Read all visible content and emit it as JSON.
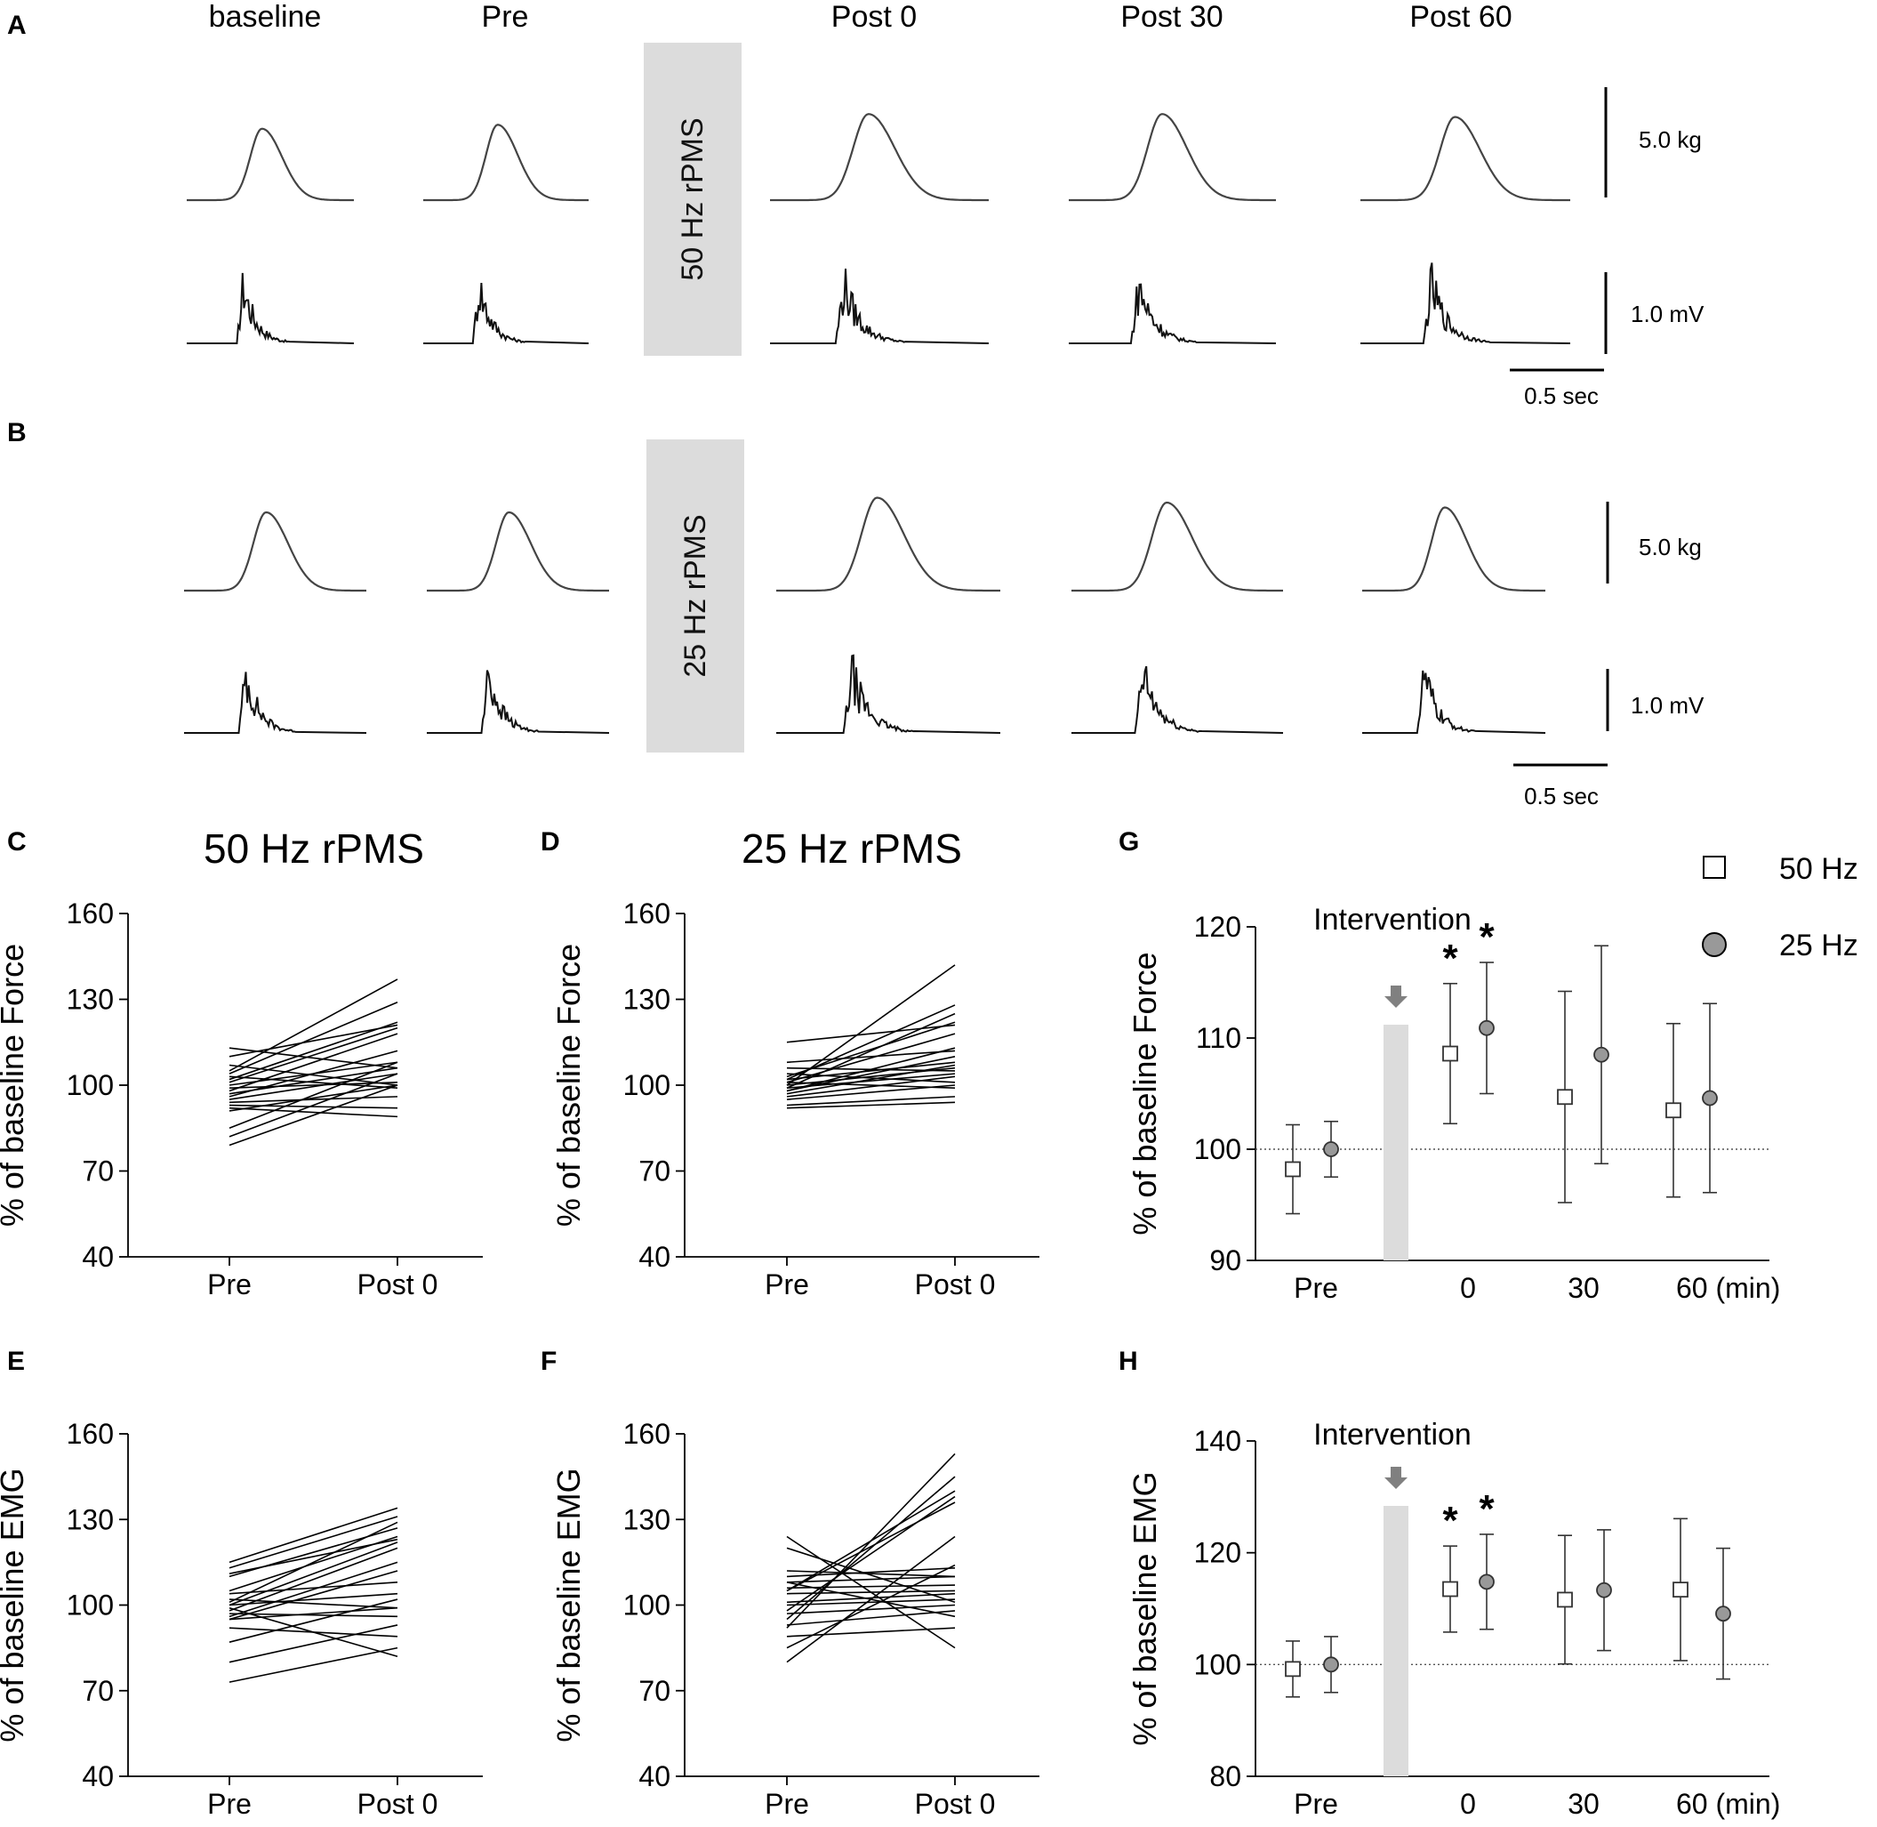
{
  "colors": {
    "trace": "#111111",
    "force_trace": "#444444",
    "band": "#dcdcdc",
    "circle_fill": "#999999",
    "square_fill": "#ffffff"
  },
  "panels_ab": {
    "A": {
      "letter": "A",
      "band_label": "50 Hz rPMS",
      "columns": [
        "baseline",
        "Pre",
        "Post 0",
        "Post 30",
        "Post 60"
      ],
      "force_scale": "5.0 kg",
      "emg_scale": "1.0 mV",
      "time_scale": "0.5 sec",
      "force_peaks": [
        0.73,
        0.77,
        0.88,
        0.88,
        0.85
      ]
    },
    "B": {
      "letter": "B",
      "band_label": "25 Hz rPMS",
      "force_scale": "5.0 kg",
      "emg_scale": "1.0 mV",
      "time_scale": "0.5 sec",
      "force_peaks": [
        0.8,
        0.8,
        0.95,
        0.9,
        0.85
      ]
    }
  },
  "chart_data": [
    {
      "id": "C",
      "letter": "C",
      "type": "line",
      "title": "50 Hz rPMS",
      "ylabel": "% of baseline Force",
      "categories": [
        "Pre",
        "Post 0"
      ],
      "ylim": [
        40,
        160
      ],
      "yticks": [
        "40",
        "70",
        "100",
        "130",
        "160"
      ],
      "pairs": [
        [
          105,
          137
        ],
        [
          104,
          129
        ],
        [
          102,
          122
        ],
        [
          101,
          120
        ],
        [
          98,
          118
        ],
        [
          100,
          108
        ],
        [
          97,
          106
        ],
        [
          95,
          104
        ],
        [
          99,
          101
        ],
        [
          103,
          99
        ],
        [
          96,
          112
        ],
        [
          94,
          96
        ],
        [
          93,
          92
        ],
        [
          92,
          89
        ],
        [
          85,
          108
        ],
        [
          82,
          104
        ],
        [
          79,
          100
        ],
        [
          107,
          100
        ],
        [
          113,
          106
        ],
        [
          110,
          121
        ],
        [
          91,
          100
        ]
      ]
    },
    {
      "id": "D",
      "letter": "D",
      "type": "line",
      "title": "25 Hz rPMS",
      "ylabel": "% of baseline Force",
      "categories": [
        "Pre",
        "Post 0"
      ],
      "ylim": [
        40,
        160
      ],
      "yticks": [
        "40",
        "70",
        "100",
        "130",
        "160"
      ],
      "pairs": [
        [
          100,
          142
        ],
        [
          102,
          128
        ],
        [
          99,
          125
        ],
        [
          103,
          122
        ],
        [
          101,
          118
        ],
        [
          115,
          121
        ],
        [
          108,
          112
        ],
        [
          98,
          110
        ],
        [
          97,
          107
        ],
        [
          100,
          106
        ],
        [
          99,
          104
        ],
        [
          96,
          103
        ],
        [
          95,
          100
        ],
        [
          93,
          96
        ],
        [
          92,
          94
        ],
        [
          101,
          99
        ],
        [
          104,
          101
        ],
        [
          106,
          105
        ],
        [
          98,
          113
        ],
        [
          102,
          108
        ]
      ]
    },
    {
      "id": "E",
      "letter": "E",
      "type": "line",
      "ylabel": "% of baseline EMG",
      "categories": [
        "Pre",
        "Post 0"
      ],
      "ylim": [
        40,
        160
      ],
      "yticks": [
        "40",
        "70",
        "100",
        "130",
        "160"
      ],
      "pairs": [
        [
          115,
          134
        ],
        [
          113,
          131
        ],
        [
          110,
          127
        ],
        [
          105,
          124
        ],
        [
          100,
          122
        ],
        [
          98,
          120
        ],
        [
          96,
          115
        ],
        [
          95,
          112
        ],
        [
          100,
          104
        ],
        [
          102,
          99
        ],
        [
          97,
          96
        ],
        [
          95,
          99
        ],
        [
          92,
          89
        ],
        [
          87,
          102
        ],
        [
          80,
          93
        ],
        [
          73,
          85
        ],
        [
          99,
          82
        ],
        [
          111,
          123
        ],
        [
          101,
          129
        ],
        [
          104,
          108
        ]
      ]
    },
    {
      "id": "F",
      "letter": "F",
      "type": "line",
      "ylabel": "% of baseline EMG",
      "categories": [
        "Pre",
        "Post 0"
      ],
      "ylim": [
        40,
        160
      ],
      "yticks": [
        "40",
        "70",
        "100",
        "130",
        "160"
      ],
      "pairs": [
        [
          92,
          153
        ],
        [
          95,
          145
        ],
        [
          98,
          138
        ],
        [
          105,
          136
        ],
        [
          124,
          85
        ],
        [
          120,
          101
        ],
        [
          110,
          113
        ],
        [
          108,
          110
        ],
        [
          106,
          107
        ],
        [
          104,
          105
        ],
        [
          101,
          104
        ],
        [
          100,
          102
        ],
        [
          97,
          100
        ],
        [
          93,
          98
        ],
        [
          89,
          92
        ],
        [
          85,
          114
        ],
        [
          80,
          124
        ],
        [
          105,
          140
        ],
        [
          108,
          96
        ],
        [
          112,
          110
        ]
      ]
    },
    {
      "id": "G",
      "letter": "G",
      "type": "scatter",
      "ylabel": "% of baseline Force",
      "ylim": [
        90,
        120
      ],
      "yticks": [
        "90",
        "100",
        "110",
        "120"
      ],
      "xticks": [
        "Pre",
        "0",
        "30",
        "60 (min)"
      ],
      "intervention_label": "Intervention",
      "reference_line": 100,
      "series": [
        {
          "name": "50 Hz",
          "marker": "square",
          "means": [
            98.2,
            108.6,
            104.7,
            103.5
          ],
          "sd": [
            4.0,
            6.3,
            9.5,
            7.8
          ]
        },
        {
          "name": "25 Hz",
          "marker": "circle",
          "means": [
            100.0,
            110.9,
            108.5,
            104.6
          ],
          "sd": [
            2.5,
            5.9,
            9.8,
            8.5
          ]
        }
      ],
      "significance": [
        "*",
        "*"
      ]
    },
    {
      "id": "H",
      "letter": "H",
      "type": "scatter",
      "ylabel": "% of baseline EMG",
      "ylim": [
        80,
        140
      ],
      "yticks": [
        "80",
        "100",
        "120",
        "140"
      ],
      "xticks": [
        "Pre",
        "0",
        "30",
        "60 (min)"
      ],
      "intervention_label": "Intervention",
      "reference_line": 100,
      "series": [
        {
          "name": "50 Hz",
          "marker": "square",
          "means": [
            99.2,
            113.5,
            111.6,
            113.4
          ],
          "sd": [
            5.0,
            7.7,
            11.5,
            12.7
          ]
        },
        {
          "name": "25 Hz",
          "marker": "circle",
          "means": [
            100.0,
            114.8,
            113.3,
            109.1
          ],
          "sd": [
            5.0,
            8.5,
            10.8,
            11.7
          ]
        }
      ],
      "significance": [
        "*",
        "*"
      ]
    }
  ],
  "legend": {
    "items": [
      "50 Hz",
      "25 Hz"
    ]
  }
}
